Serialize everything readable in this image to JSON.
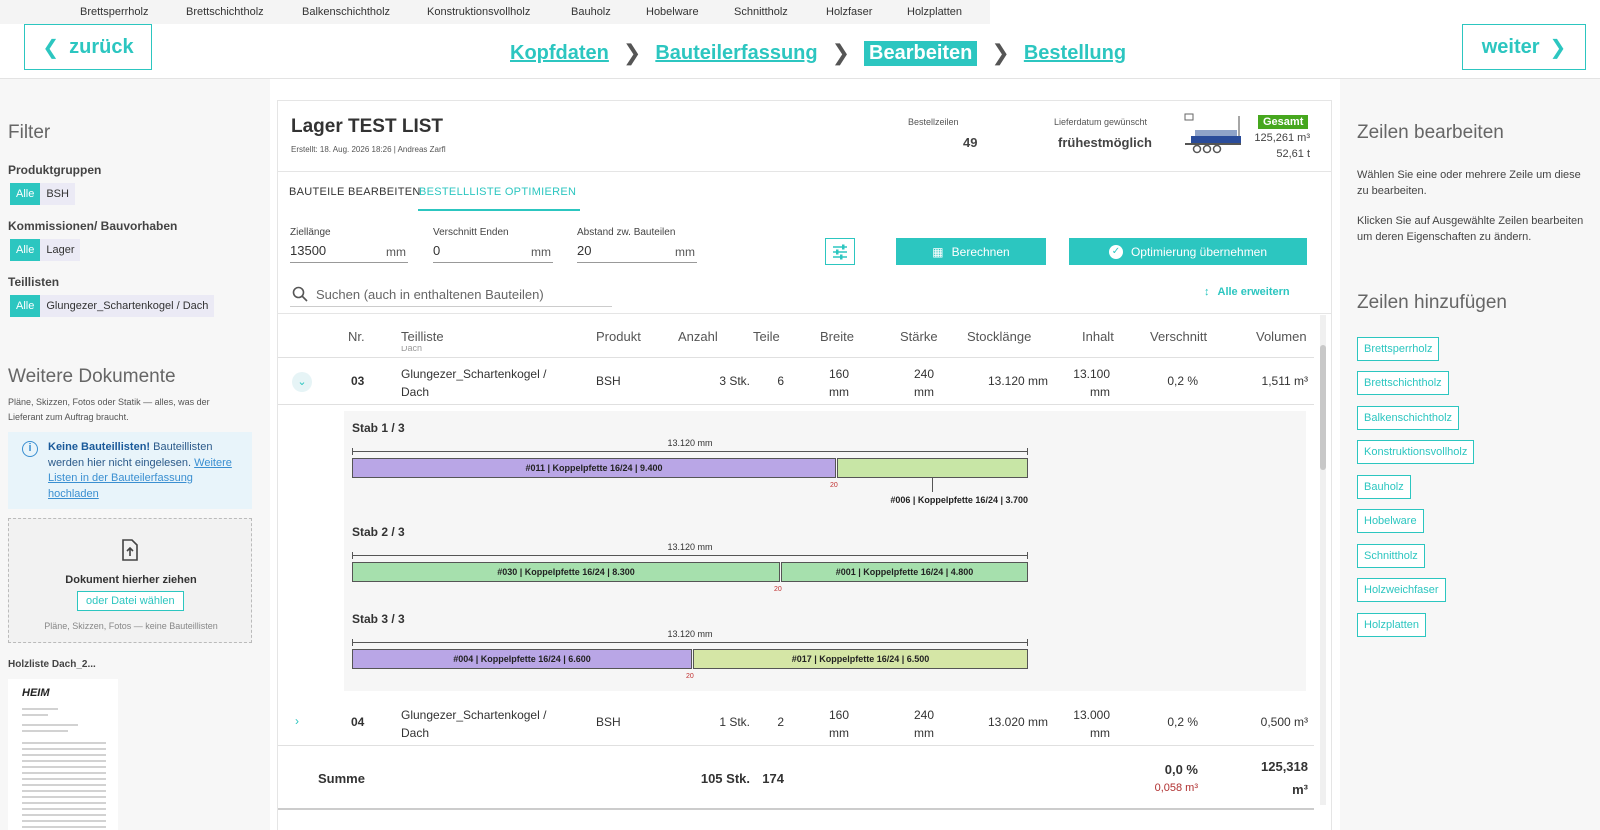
{
  "topnav": [
    "Brettsperrholz",
    "Brettschichtholz",
    "Balkenschichtholz",
    "Konstruktionsvollholz",
    "Bauholz",
    "Hobelware",
    "Schnittholz",
    "Holzfaser",
    "Holzplatten"
  ],
  "nav": {
    "back": "zurück",
    "next": "weiter",
    "steps": [
      "Kopfdaten",
      "Bauteilerfassung",
      "Bearbeiten",
      "Bestellung"
    ]
  },
  "filter": {
    "title": "Filter",
    "groups": [
      {
        "label": "Produktgruppen",
        "all": "Alle",
        "value": "BSH"
      },
      {
        "label": "Kommissionen/ Bauvorhaben",
        "all": "Alle",
        "value": "Lager"
      },
      {
        "label": "Teillisten",
        "all": "Alle",
        "value": "Glungezer_Schartenkogel / Dach"
      }
    ]
  },
  "docs": {
    "title": "Weitere Dokumente",
    "desc": "Pläne, Skizzen, Fotos oder Statik — alles, was der Lieferant zum Auftrag braucht.",
    "info_bold": "Keine Bauteillisten!",
    "info_text": " Bauteillisten werden hier nicht eingelesen. ",
    "info_link": "Weitere Listen in der Bauteilerfassung hochladen",
    "drop_title": "Dokument hierher ziehen",
    "drop_button": "oder Datei wählen",
    "drop_hint": "Pläne, Skizzen, Fotos — keine Bauteillisten",
    "file_name": "Holzliste Dach_2...",
    "thumb_logo": "HEIM"
  },
  "order": {
    "title": "Lager TEST LIST",
    "created": "Erstellt: 18. Aug. 2026 18:26 | Andreas Zarfl",
    "lines_label": "Bestellzeilen",
    "lines_value": "49",
    "date_label": "Lieferdatum gewünscht",
    "date_value": "frühestmöglich",
    "total_badge": "Gesamt",
    "total_volume": "125,261 m³",
    "total_weight": "52,61 t"
  },
  "tabs": [
    "BAUTEILE BEARBEITEN",
    "BESTELLLISTE OPTIMIEREN"
  ],
  "opt": {
    "fields": [
      {
        "label": "Ziellänge",
        "value": "13500",
        "unit": "mm"
      },
      {
        "label": "Verschnitt Enden",
        "value": "0",
        "unit": "mm"
      },
      {
        "label": "Abstand zw. Bauteilen",
        "value": "20",
        "unit": "mm"
      }
    ],
    "calc": "Berechnen",
    "apply": "Optimierung übernehmen",
    "search_placeholder": "Suchen (auch in enthaltenen Bauteilen)",
    "expand_all": "Alle erweitern"
  },
  "table": {
    "headers": [
      "Nr.",
      "Teilliste",
      "Produkt",
      "Anzahl",
      "Teile",
      "Breite",
      "Stärke",
      "Stocklänge",
      "Inhalt",
      "Verschnitt",
      "Volumen"
    ],
    "cut_text": "Dach",
    "rows": [
      {
        "nr": "03",
        "list1": "Glungezer_Schartenkogel /",
        "list2": "Dach",
        "product": "BSH",
        "qty": "3 Stk.",
        "parts": "6",
        "width": "160",
        "wunit": "mm",
        "thick": "240",
        "tunit": "mm",
        "stock": "13.120 mm",
        "content": "13.100",
        "cunit": "mm",
        "waste": "0,2 %",
        "volume": "1,511 m³"
      },
      {
        "nr": "04",
        "list1": "Glungezer_Schartenkogel /",
        "list2": "Dach",
        "product": "BSH",
        "qty": "1 Stk.",
        "parts": "2",
        "width": "160",
        "wunit": "mm",
        "thick": "240",
        "tunit": "mm",
        "stock": "13.020 mm",
        "content": "13.000",
        "cunit": "mm",
        "waste": "0,2 %",
        "volume": "0,500 m³"
      }
    ],
    "sum": {
      "label": "Summe",
      "qty": "105 Stk.",
      "parts": "174",
      "waste_pct": "0,0 %",
      "waste_vol": "0,058 m³",
      "volume1": "125,318",
      "volume2": "m³"
    }
  },
  "stabs": [
    {
      "label": "Stab 1 / 3",
      "length": "13.120 mm",
      "gap": "20",
      "pieces": [
        {
          "text": "#011 | Koppelpfette 16/24 | 9.400",
          "len": 9400,
          "color": "#b9a6e6"
        },
        {
          "text": "#006 | Koppelpfette 16/24 | 3.700",
          "len": 3700,
          "color": "#c8e6a6"
        }
      ]
    },
    {
      "label": "Stab 2 / 3",
      "length": "13.120 mm",
      "gap": "20",
      "pieces": [
        {
          "text": "#030 | Koppelpfette 16/24 | 8.300",
          "len": 8300,
          "color": "#a6e0ad"
        },
        {
          "text": "#001 | Koppelpfette 16/24 | 4.800",
          "len": 4800,
          "color": "#a6e0ad"
        }
      ]
    },
    {
      "label": "Stab 3 / 3",
      "length": "13.120 mm",
      "gap": "20",
      "pieces": [
        {
          "text": "#004 | Koppelpfette 16/24 | 6.600",
          "len": 6600,
          "color": "#b9a6e6"
        },
        {
          "text": "#017 | Koppelpfette 16/24 | 6.500",
          "len": 6500,
          "color": "#d5e6a6"
        }
      ]
    }
  ],
  "right": {
    "edit_title": "Zeilen bearbeiten",
    "edit_p1": "Wählen Sie eine oder mehrere Zeile um diese zu bearbeiten.",
    "edit_p2": "Klicken Sie auf Ausgewählte Zeilen bearbeiten um deren Eigenschaften zu ändern.",
    "add_title": "Zeilen hinzufügen",
    "add_buttons": [
      "Brettsperrholz",
      "Brettschichtholz",
      "Balkenschichtholz",
      "Konstruktionsvollholz",
      "Bauholz",
      "Hobelware",
      "Schnittholz",
      "Holzweichfaser",
      "Holzplatten"
    ]
  },
  "colors": {
    "accent": "#2cc6c0",
    "badge": "#46a71e"
  }
}
